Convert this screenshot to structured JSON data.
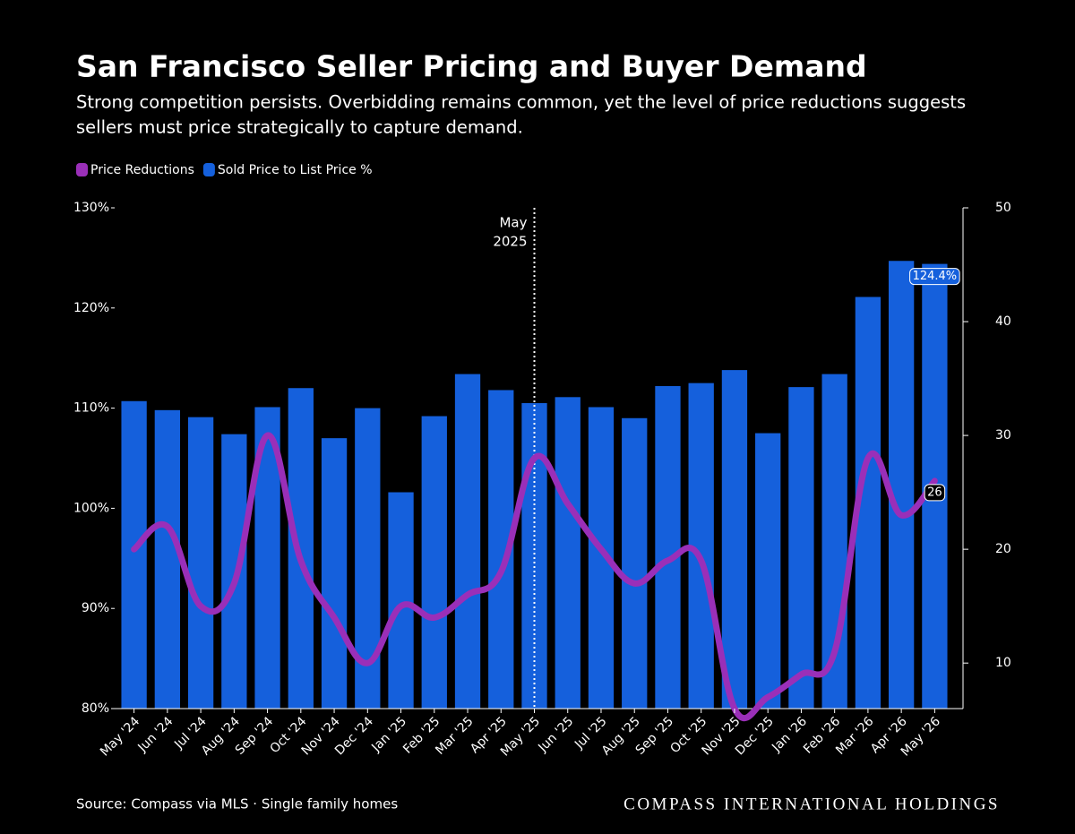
{
  "chart_data": {
    "type": "bar-line",
    "title": "San Francisco Seller Pricing and Buyer Demand",
    "subtitle_lines": [
      "Strong competition persists. Overbidding remains common, yet the level of price reductions suggests",
      "sellers must price strategically to capture demand."
    ],
    "annotation_lines": [
      "May",
      "2025"
    ],
    "source": "Source: Compass via MLS · Single family homes",
    "brand": "COMPASS INTERNATIONAL HOLDINGS",
    "categories": [
      "May '24",
      "Jun '24",
      "Jul '24",
      "Aug '24",
      "Sep '24",
      "Oct '24",
      "Nov '24",
      "Dec '24",
      "Jan '25",
      "Feb '25",
      "Mar '25",
      "Apr '25",
      "May '25",
      "Jun '25",
      "Jul '25",
      "Aug '25",
      "Sep '25",
      "Oct '25",
      "Nov '25",
      "Dec '25",
      "Jan '26",
      "Feb '26",
      "Mar '26",
      "Apr '26",
      "May '26"
    ],
    "series": [
      {
        "name": "Sold Price to List Price %",
        "type": "bar",
        "color": "#1560dc",
        "values": [
          110.7,
          109.8,
          109.1,
          107.4,
          110.1,
          112.0,
          107.0,
          110.0,
          101.6,
          109.2,
          113.4,
          111.8,
          110.5,
          111.1,
          110.1,
          109.0,
          112.2,
          112.5,
          113.8,
          107.5,
          112.1,
          113.4,
          121.1,
          124.7,
          124.4
        ],
        "value_labels": [
          null,
          null,
          null,
          null,
          null,
          null,
          null,
          null,
          null,
          null,
          null,
          null,
          null,
          null,
          null,
          null,
          null,
          null,
          null,
          null,
          null,
          null,
          null,
          null,
          "124.4%"
        ]
      },
      {
        "name": "Price Reductions",
        "type": "line",
        "axis": "y2",
        "color": "#9a2fb8",
        "values": [
          20,
          22,
          15,
          17,
          30,
          19,
          14,
          10,
          15,
          14,
          16,
          18,
          28,
          24,
          20,
          17,
          19,
          19,
          6,
          7,
          9,
          11,
          28,
          23,
          26
        ]
      }
    ],
    "legend_order": [
      1,
      0
    ],
    "ylim": [
      80,
      130
    ],
    "yticks": [
      {
        "value": 80,
        "label": "80%"
      },
      {
        "value": 90,
        "label": "90%"
      },
      {
        "value": 100,
        "label": "100%"
      },
      {
        "value": 110,
        "label": "110%"
      },
      {
        "value": 120,
        "label": "120%"
      },
      {
        "value": 130,
        "label": "130%"
      }
    ],
    "y2lim": [
      6,
      50
    ],
    "y2ticks": [
      10,
      20,
      30,
      40,
      50
    ]
  }
}
